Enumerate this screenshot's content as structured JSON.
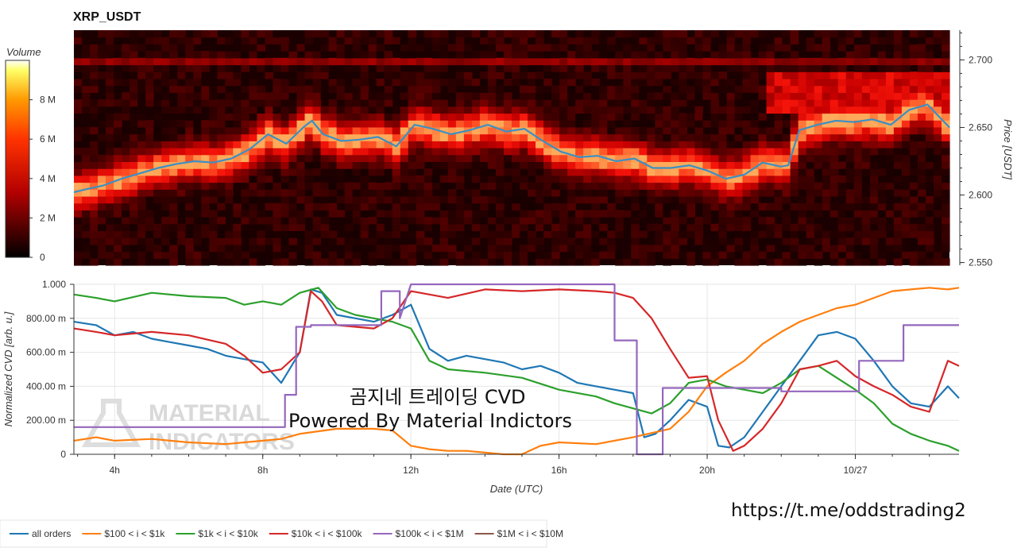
{
  "title": "XRP_USDT",
  "colorbar": {
    "label": "Volume",
    "min": 0,
    "max": 10000000,
    "ticks": [
      "0",
      "2 M",
      "4 M",
      "6 M",
      "8 M"
    ],
    "tick_values": [
      0,
      2000000,
      4000000,
      6000000,
      8000000
    ]
  },
  "overlay": {
    "line1": "곰지네 트레이딩 CVD",
    "line2": "Powered By Material Indictors",
    "url": "https://t.me/oddstrading2"
  },
  "watermark": {
    "line1": "MATERIAL",
    "line2": "INDICATORS"
  },
  "colors": {
    "all_orders": "#1f77b4",
    "r100_1k": "#ff7f0e",
    "r1k_10k": "#2ca02c",
    "r10k_100k": "#d62728",
    "r100k_1m": "#9467bd",
    "r1m_10m": "#8c564b",
    "price_line": "#3b8fc4"
  },
  "chart_data": [
    {
      "type": "heatmap",
      "title": "XRP_USDT",
      "ylabel": "Price [USDT]",
      "ylim": [
        2.548,
        2.722
      ],
      "y_ticks": [
        "2.550",
        "2.600",
        "2.650",
        "2.700"
      ],
      "y_tick_values": [
        2.55,
        2.6,
        2.65,
        2.7
      ],
      "x_range_hours": [
        2.7,
        26.6
      ],
      "price_series": {
        "name": "price",
        "x": [
          2.7,
          3.0,
          3.5,
          4.0,
          4.5,
          5.0,
          5.5,
          6.0,
          6.5,
          7.0,
          7.5,
          8.0,
          8.5,
          9.0,
          9.2,
          9.5,
          10.0,
          10.5,
          11.0,
          11.5,
          12.0,
          12.5,
          13.0,
          13.5,
          14.0,
          14.5,
          15.0,
          15.5,
          16.0,
          16.5,
          17.0,
          17.5,
          18.0,
          18.5,
          19.0,
          19.5,
          20.0,
          20.5,
          21.0,
          21.5,
          22.0,
          22.2,
          22.5,
          23.0,
          23.5,
          24.0,
          24.5,
          25.0,
          25.5,
          26.0,
          26.6
        ],
        "y": [
          2.602,
          2.604,
          2.607,
          2.612,
          2.616,
          2.62,
          2.623,
          2.625,
          2.624,
          2.627,
          2.634,
          2.645,
          2.638,
          2.651,
          2.655,
          2.645,
          2.64,
          2.641,
          2.643,
          2.636,
          2.652,
          2.649,
          2.645,
          2.648,
          2.652,
          2.647,
          2.649,
          2.64,
          2.632,
          2.628,
          2.629,
          2.625,
          2.627,
          2.62,
          2.62,
          2.622,
          2.618,
          2.612,
          2.615,
          2.624,
          2.621,
          2.622,
          2.648,
          2.652,
          2.655,
          2.654,
          2.656,
          2.652,
          2.663,
          2.667,
          2.65
        ]
      }
    },
    {
      "type": "line",
      "xlabel": "Date (UTC)",
      "ylabel": "Normalized CVD [arb. u.]",
      "ylim": [
        0,
        1.0
      ],
      "xlim": [
        2.9,
        26.8
      ],
      "x_ticks": [
        "4h",
        "8h",
        "12h",
        "16h",
        "20h",
        "10/27"
      ],
      "x_tick_values": [
        4,
        8,
        12,
        16,
        20,
        24
      ],
      "y_ticks": [
        "0",
        "200.00 m",
        "400.00 m",
        "600.00 m",
        "800.00 m",
        "1.000"
      ],
      "y_tick_values": [
        0,
        0.2,
        0.4,
        0.6,
        0.8,
        1.0
      ],
      "series": [
        {
          "name": "all orders",
          "color": "#1f77b4",
          "x": [
            2.9,
            3.5,
            4.0,
            4.5,
            5.0,
            5.5,
            6.0,
            6.5,
            7.0,
            7.5,
            8.0,
            8.5,
            9.0,
            9.3,
            9.6,
            10.0,
            10.5,
            11.0,
            11.5,
            12.0,
            12.5,
            13.0,
            13.5,
            14.0,
            14.5,
            15.0,
            15.5,
            16.0,
            16.5,
            17.0,
            17.5,
            18.0,
            18.3,
            18.6,
            19.0,
            19.5,
            20.0,
            20.3,
            20.6,
            21.0,
            21.5,
            22.0,
            22.5,
            23.0,
            23.5,
            24.0,
            24.5,
            25.0,
            25.5,
            26.0,
            26.5,
            26.8
          ],
          "y": [
            0.78,
            0.76,
            0.7,
            0.72,
            0.68,
            0.66,
            0.64,
            0.62,
            0.58,
            0.56,
            0.54,
            0.42,
            0.6,
            0.97,
            0.95,
            0.82,
            0.8,
            0.78,
            0.82,
            0.88,
            0.62,
            0.55,
            0.58,
            0.56,
            0.54,
            0.5,
            0.52,
            0.48,
            0.42,
            0.4,
            0.38,
            0.36,
            0.1,
            0.12,
            0.2,
            0.32,
            0.28,
            0.05,
            0.04,
            0.1,
            0.25,
            0.4,
            0.55,
            0.7,
            0.72,
            0.68,
            0.55,
            0.4,
            0.3,
            0.28,
            0.4,
            0.33
          ]
        },
        {
          "name": "$100 < i < $1k",
          "color": "#ff7f0e",
          "x": [
            2.9,
            3.5,
            4.0,
            5.0,
            6.0,
            7.0,
            8.0,
            8.5,
            9.0,
            10.0,
            11.0,
            11.5,
            12.0,
            12.5,
            13.0,
            13.5,
            14.0,
            14.5,
            15.0,
            15.5,
            16.0,
            17.0,
            18.0,
            19.0,
            19.5,
            20.0,
            20.5,
            21.0,
            21.5,
            22.0,
            22.5,
            23.0,
            23.5,
            24.0,
            24.5,
            25.0,
            25.5,
            26.0,
            26.5,
            26.8
          ],
          "y": [
            0.08,
            0.1,
            0.08,
            0.09,
            0.07,
            0.06,
            0.08,
            0.09,
            0.12,
            0.15,
            0.15,
            0.14,
            0.05,
            0.03,
            0.02,
            0.02,
            0.01,
            0.0,
            0.0,
            0.05,
            0.07,
            0.06,
            0.1,
            0.15,
            0.25,
            0.4,
            0.48,
            0.55,
            0.65,
            0.72,
            0.78,
            0.82,
            0.86,
            0.88,
            0.92,
            0.96,
            0.97,
            0.98,
            0.97,
            0.98
          ]
        },
        {
          "name": "$1k < i < $10k",
          "color": "#2ca02c",
          "x": [
            2.9,
            3.5,
            4.0,
            5.0,
            6.0,
            7.0,
            7.5,
            8.0,
            8.5,
            9.0,
            9.5,
            10.0,
            10.5,
            11.0,
            11.5,
            12.0,
            12.5,
            13.0,
            14.0,
            15.0,
            16.0,
            17.0,
            17.5,
            18.0,
            18.5,
            19.0,
            19.5,
            20.0,
            20.5,
            21.0,
            21.5,
            22.0,
            22.5,
            23.0,
            23.5,
            24.0,
            24.5,
            25.0,
            25.5,
            26.0,
            26.5,
            26.8
          ],
          "y": [
            0.94,
            0.92,
            0.9,
            0.95,
            0.93,
            0.92,
            0.88,
            0.9,
            0.88,
            0.95,
            0.98,
            0.86,
            0.82,
            0.8,
            0.78,
            0.74,
            0.55,
            0.5,
            0.48,
            0.45,
            0.38,
            0.34,
            0.3,
            0.27,
            0.24,
            0.3,
            0.42,
            0.44,
            0.4,
            0.38,
            0.36,
            0.42,
            0.5,
            0.52,
            0.45,
            0.38,
            0.3,
            0.18,
            0.12,
            0.08,
            0.05,
            0.02
          ]
        },
        {
          "name": "$10k < i < $100k",
          "color": "#d62728",
          "x": [
            2.9,
            3.5,
            4.0,
            5.0,
            6.0,
            7.0,
            7.5,
            8.0,
            8.5,
            9.0,
            9.3,
            9.6,
            10.0,
            10.5,
            11.0,
            11.5,
            12.0,
            13.0,
            14.0,
            15.0,
            16.0,
            17.0,
            17.5,
            18.0,
            18.5,
            19.0,
            19.5,
            20.0,
            20.3,
            20.7,
            21.0,
            21.5,
            22.0,
            22.5,
            23.0,
            23.5,
            24.0,
            24.5,
            25.0,
            25.5,
            26.0,
            26.5,
            26.8
          ],
          "y": [
            0.74,
            0.72,
            0.7,
            0.72,
            0.7,
            0.65,
            0.58,
            0.48,
            0.5,
            0.6,
            0.96,
            0.9,
            0.76,
            0.75,
            0.74,
            0.8,
            0.96,
            0.92,
            0.97,
            0.96,
            0.97,
            0.96,
            0.95,
            0.92,
            0.8,
            0.62,
            0.45,
            0.46,
            0.2,
            0.02,
            0.05,
            0.15,
            0.3,
            0.5,
            0.52,
            0.55,
            0.46,
            0.4,
            0.35,
            0.28,
            0.25,
            0.55,
            0.52
          ]
        },
        {
          "name": "$100k < i < $1M",
          "color": "#9467bd",
          "x": [
            2.9,
            8.6,
            8.6,
            8.9,
            8.9,
            9.3,
            9.3,
            10.5,
            11.2,
            11.2,
            11.7,
            11.7,
            12.0,
            17.5,
            17.5,
            18.1,
            18.1,
            18.8,
            18.8,
            21.8,
            22.0,
            22.0,
            24.1,
            24.1,
            25.3,
            25.3,
            26.8
          ],
          "y": [
            0.16,
            0.16,
            0.35,
            0.35,
            0.75,
            0.75,
            0.76,
            0.76,
            0.76,
            0.96,
            0.96,
            0.8,
            1.0,
            1.0,
            0.67,
            0.67,
            0.0,
            0.0,
            0.39,
            0.39,
            0.39,
            0.37,
            0.37,
            0.55,
            0.55,
            0.76,
            0.76
          ]
        },
        {
          "name": "$1M < i < $10M",
          "color": "#8c564b",
          "x": [],
          "y": []
        }
      ]
    }
  ]
}
